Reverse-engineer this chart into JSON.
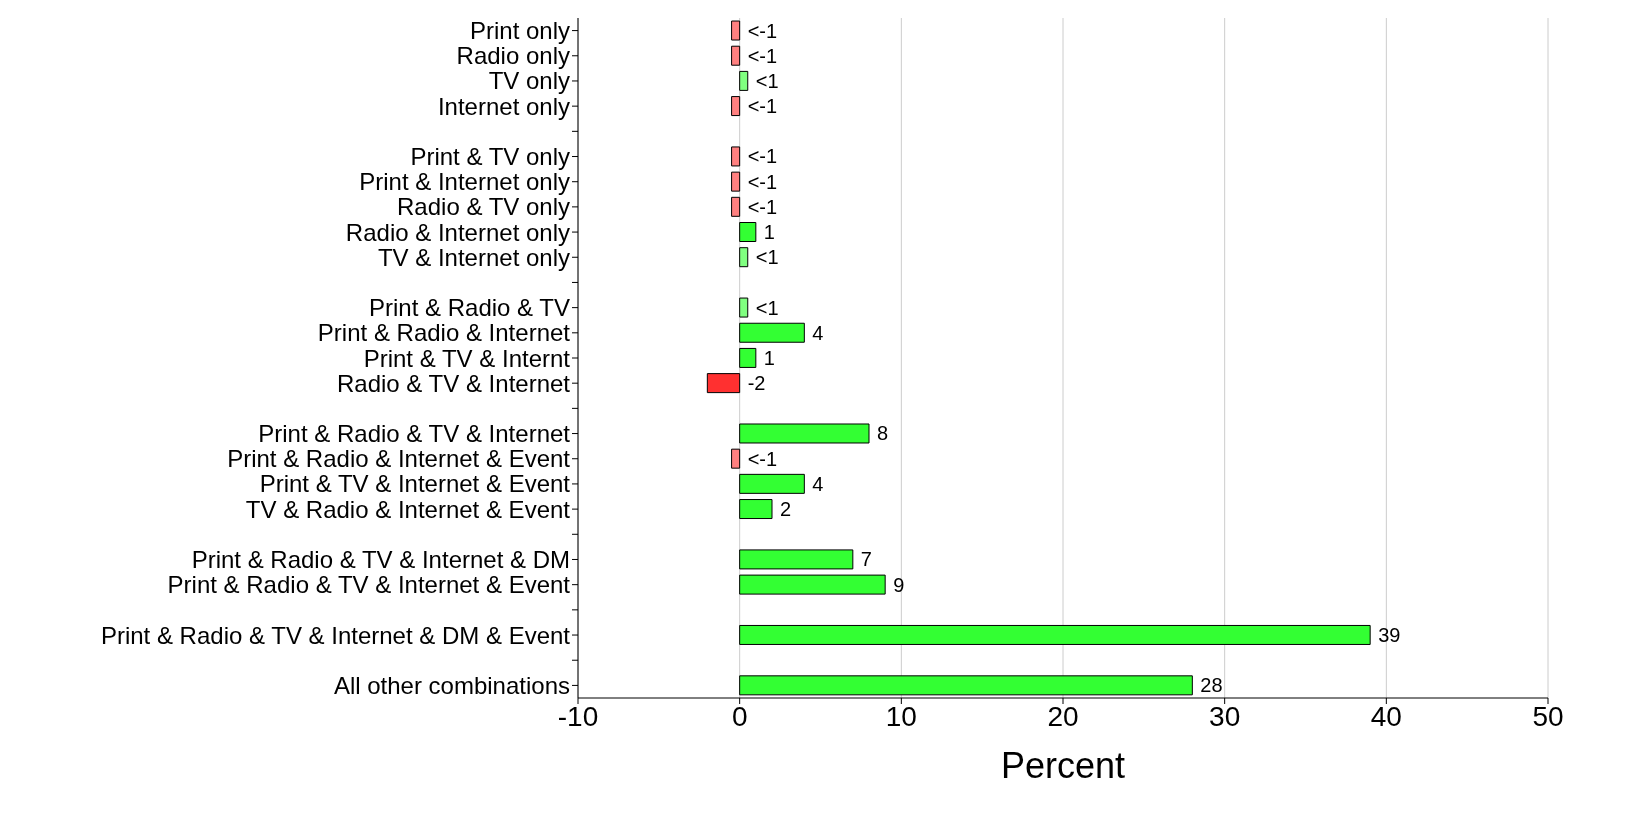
{
  "chart_data": {
    "type": "bar",
    "orientation": "horizontal",
    "xlabel": "Percent",
    "categories": [
      "Print only",
      "Radio only",
      "TV only",
      "Internet only",
      null,
      "Print & TV only",
      "Print & Internet only",
      "Radio & TV only",
      "Radio & Internet only",
      "TV & Internet only",
      null,
      "Print & Radio & TV",
      "Print & Radio & Internet",
      "Print & TV & Internt",
      "Radio & TV & Internet",
      null,
      "Print & Radio & TV & Internet",
      "Print & Radio & Internet & Event",
      "Print & TV & Internet & Event",
      "TV & Radio & Internet & Event",
      null,
      "Print & Radio & TV & Internet & DM",
      "Print & Radio & TV & Internet & Event",
      null,
      "Print & Radio & TV & Internet & DM & Event",
      null,
      "All other combinations"
    ],
    "values": [
      -0.5,
      -0.5,
      0.5,
      -0.5,
      null,
      -0.5,
      -0.5,
      -0.5,
      1,
      0.5,
      null,
      0.5,
      4,
      1,
      -2,
      null,
      8,
      -0.5,
      4,
      2,
      null,
      7,
      9,
      null,
      39,
      null,
      28
    ],
    "value_labels": [
      "<-1",
      "<-1",
      "<1",
      "<-1",
      null,
      "<-1",
      "<-1",
      "<-1",
      "1",
      "<1",
      null,
      "<1",
      "4",
      "1",
      "-2",
      null,
      "8",
      "<-1",
      "4",
      "2",
      null,
      "7",
      "9",
      null,
      "39",
      null,
      "28"
    ],
    "colors": [
      "#ff8080",
      "#ff8080",
      "#80ff80",
      "#ff8080",
      null,
      "#ff8080",
      "#ff8080",
      "#ff8080",
      "#33ff33",
      "#80ff80",
      null,
      "#80ff80",
      "#33ff33",
      "#33ff33",
      "#ff3030",
      null,
      "#33ff33",
      "#ff8080",
      "#33ff33",
      "#33ff33",
      null,
      "#33ff33",
      "#33ff33",
      null,
      "#33ff33",
      null,
      "#33ff33"
    ],
    "xlim": [
      -10,
      50
    ],
    "xticks": [
      -10,
      0,
      10,
      20,
      30,
      40,
      50
    ],
    "grid": "x"
  }
}
